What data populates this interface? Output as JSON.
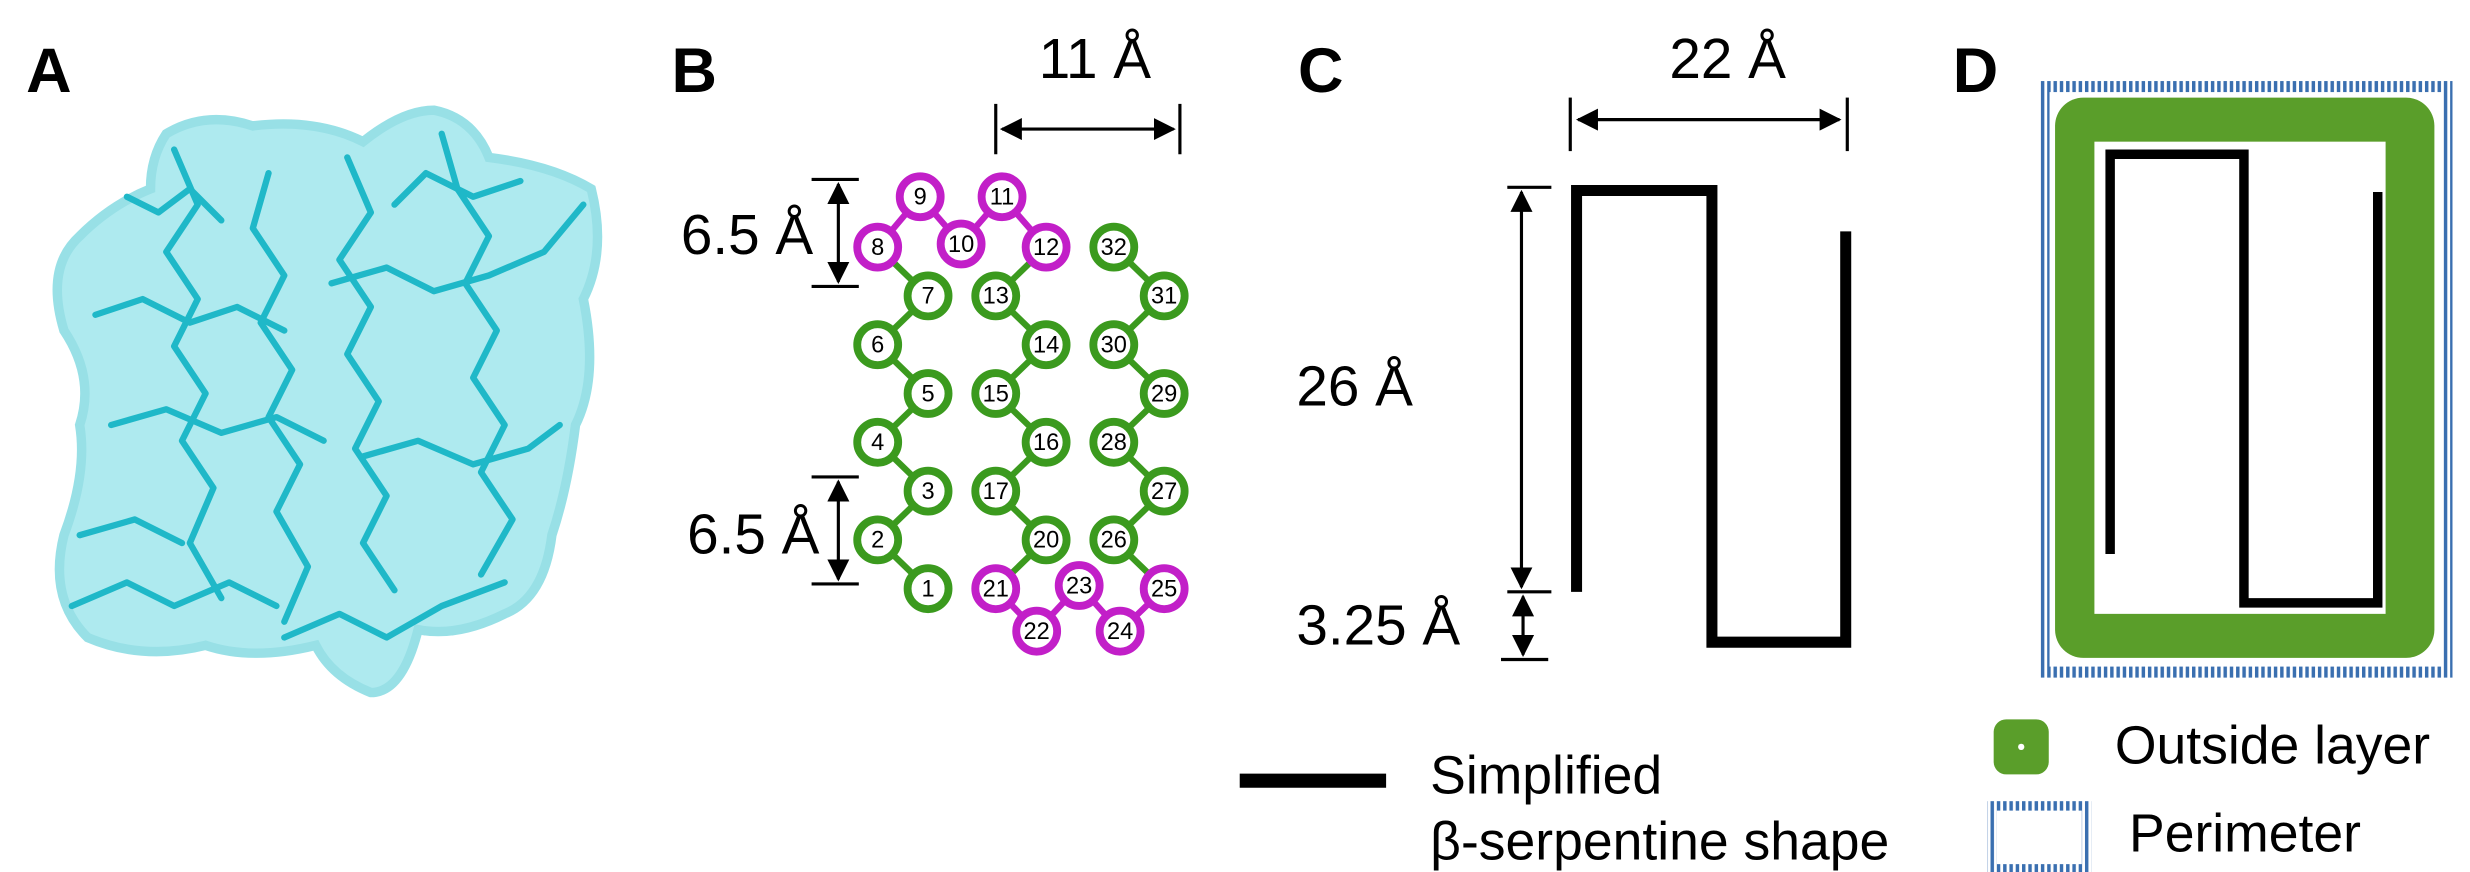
{
  "panels": {
    "a": {
      "label": "A"
    },
    "b": {
      "label": "B",
      "width_label": "11 Å",
      "spacing_top": "6.5 Å",
      "spacing_bottom": "6.5 Å",
      "nodes": [
        {
          "label": "1"
        },
        {
          "label": "2"
        },
        {
          "label": "3"
        },
        {
          "label": "4"
        },
        {
          "label": "5"
        },
        {
          "label": "6"
        },
        {
          "label": "7"
        },
        {
          "label": "8"
        },
        {
          "label": "9"
        },
        {
          "label": "10"
        },
        {
          "label": "11"
        },
        {
          "label": "12"
        },
        {
          "label": "13"
        },
        {
          "label": "14"
        },
        {
          "label": "15"
        },
        {
          "label": "16"
        },
        {
          "label": "17"
        },
        {
          "label": "20"
        },
        {
          "label": "21"
        },
        {
          "label": "22"
        },
        {
          "label": "23"
        },
        {
          "label": "24"
        },
        {
          "label": "25"
        },
        {
          "label": "26"
        },
        {
          "label": "27"
        },
        {
          "label": "28"
        },
        {
          "label": "29"
        },
        {
          "label": "30"
        },
        {
          "label": "31"
        },
        {
          "label": "32"
        }
      ]
    },
    "c": {
      "label": "C",
      "width_label": "22 Å",
      "height_label": "26 Å",
      "offset_label": "3.25 Å"
    },
    "d": {
      "label": "D"
    }
  },
  "legend": {
    "shape": [
      "Simplified",
      "β-serpentine shape"
    ],
    "outside_layer": "Outside layer",
    "perimeter": "Perimeter"
  }
}
